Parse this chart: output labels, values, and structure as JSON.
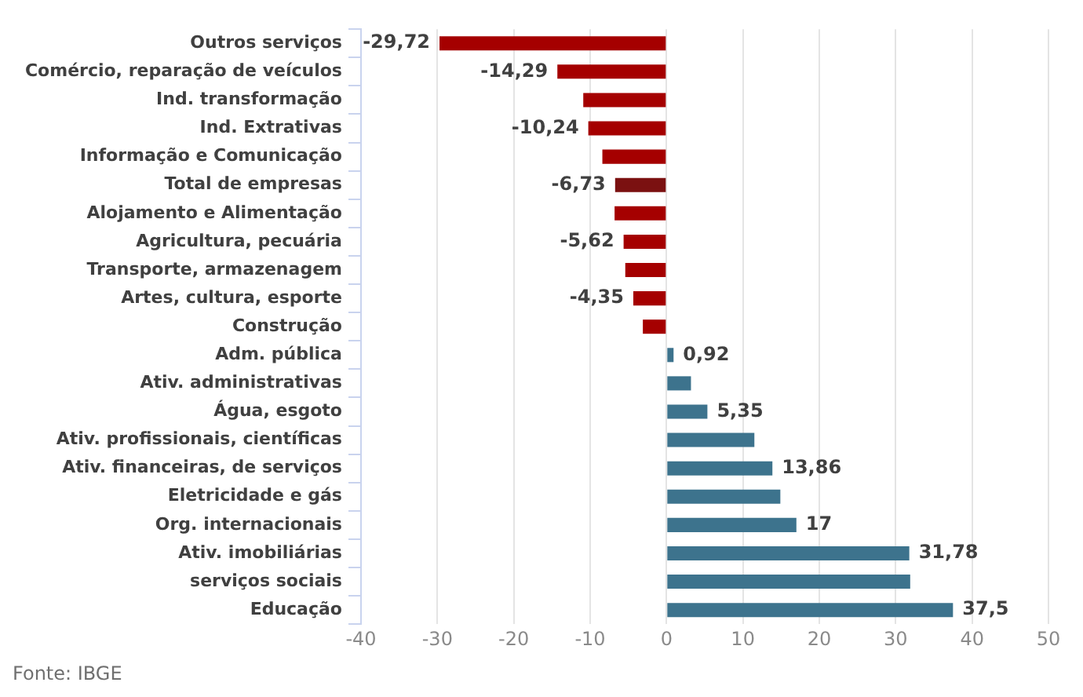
{
  "chart_data": {
    "type": "bar",
    "orientation": "horizontal",
    "categories": [
      "Outros serviços",
      "Comércio, reparação de veículos",
      "Ind. transformação",
      "Ind. Extrativas",
      "Informação e Comunicação",
      "Total de empresas",
      "Alojamento e Alimentação",
      "Agricultura, pecuária",
      "Transporte, armazenagem",
      "Artes, cultura, esporte",
      "Construção",
      "Adm. pública",
      "Ativ. administrativas",
      "Água, esgoto",
      "Ativ. profissionais, científicas",
      "Ativ. financeiras, de serviços",
      "Eletricidade e gás",
      "Org. internacionais",
      "Ativ. imobiliárias",
      "serviços sociais",
      "Educação"
    ],
    "values": [
      -29.72,
      -14.29,
      -10.9,
      -10.24,
      -8.4,
      -6.73,
      -6.8,
      -5.62,
      -5.4,
      -4.35,
      -3.1,
      0.92,
      3.2,
      5.35,
      11.5,
      13.86,
      14.9,
      17,
      31.78,
      31.9,
      37.5
    ],
    "value_labels": [
      "-29,72",
      "-14,29",
      null,
      "-10,24",
      null,
      "-6,73",
      null,
      "-5,62",
      null,
      "-4,35",
      null,
      "0,92",
      null,
      "5,35",
      null,
      "13,86",
      null,
      "17",
      "31,78",
      null,
      "37,5"
    ],
    "colors": [
      "#a50000",
      "#a50000",
      "#a50000",
      "#a50000",
      "#a50000",
      "#7b1111",
      "#a50000",
      "#a50000",
      "#a50000",
      "#a50000",
      "#a50000",
      "#3d738d",
      "#3d738d",
      "#3d738d",
      "#3d738d",
      "#3d738d",
      "#3d738d",
      "#3d738d",
      "#3d738d",
      "#3d738d",
      "#3d738d"
    ],
    "xlim": [
      -40,
      50
    ],
    "xticks": [
      -40,
      -30,
      -20,
      -10,
      0,
      10,
      20,
      30,
      40,
      50
    ],
    "grid": "x",
    "annotations": [
      "Fonte: IBGE"
    ]
  }
}
